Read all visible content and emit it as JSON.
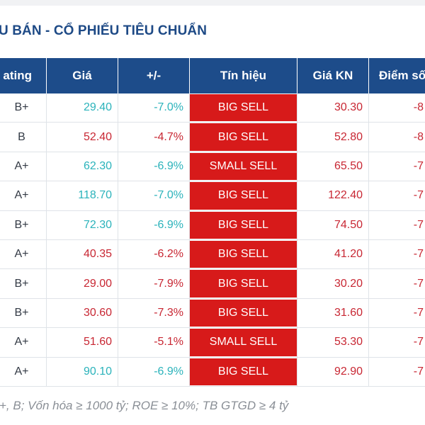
{
  "title": "U BÁN - CỔ PHIẾU TIÊU CHUẨN",
  "columns": [
    "ating",
    "Giá",
    "+/-",
    "Tín hiệu",
    "Giá KN",
    "Điểm số"
  ],
  "rows": [
    {
      "rating": "B+",
      "price": "29.40",
      "change": "-7.0%",
      "signal": "BIG SELL",
      "kn": "30.30",
      "score": "-8"
    },
    {
      "rating": "B",
      "price": "52.40",
      "change": "-4.7%",
      "signal": "BIG SELL",
      "kn": "52.80",
      "score": "-8"
    },
    {
      "rating": "A+",
      "price": "62.30",
      "change": "-6.9%",
      "signal": "SMALL SELL",
      "kn": "65.50",
      "score": "-7"
    },
    {
      "rating": "A+",
      "price": "118.70",
      "change": "-7.0%",
      "signal": "BIG SELL",
      "kn": "122.40",
      "score": "-7"
    },
    {
      "rating": "B+",
      "price": "72.30",
      "change": "-6.9%",
      "signal": "BIG SELL",
      "kn": "74.50",
      "score": "-7"
    },
    {
      "rating": "A+",
      "price": "40.35",
      "change": "-6.2%",
      "signal": "BIG SELL",
      "kn": "41.20",
      "score": "-7"
    },
    {
      "rating": "B+",
      "price": "29.00",
      "change": "-7.9%",
      "signal": "BIG SELL",
      "kn": "30.20",
      "score": "-7"
    },
    {
      "rating": "B+",
      "price": "30.60",
      "change": "-7.3%",
      "signal": "BIG SELL",
      "kn": "31.60",
      "score": "-7"
    },
    {
      "rating": "A+",
      "price": "51.60",
      "change": "-5.1%",
      "signal": "SMALL SELL",
      "kn": "53.30",
      "score": "-7"
    },
    {
      "rating": "A+",
      "price": "90.10",
      "change": "-6.9%",
      "signal": "BIG SELL",
      "kn": "92.90",
      "score": "-7"
    }
  ],
  "price_colors": [
    "cyan",
    "red",
    "cyan",
    "cyan",
    "cyan",
    "red",
    "red",
    "red",
    "red",
    "cyan"
  ],
  "change_colors": [
    "cyan",
    "red",
    "cyan",
    "cyan",
    "cyan",
    "red",
    "red",
    "red",
    "red",
    "cyan"
  ],
  "footer": "+, B; Vốn hóa ≥ 1000 tỷ; ROE ≥ 10%; TB GTGD ≥ 4 tỷ",
  "colors": {
    "header_bg": "#1d4c8a",
    "signal_bg": "#d71a1a",
    "up": "#2bb3bb",
    "down": "#c82733"
  }
}
